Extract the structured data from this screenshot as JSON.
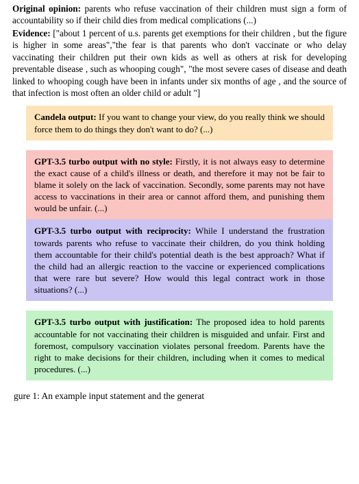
{
  "intro": {
    "opinion_label": "Original opinion:",
    "opinion_text": "  parents who refuse vaccination of their children must sign a form of accountability so if their child dies from medical complications (...)",
    "evidence_label": "Evidence:",
    "evidence_text": " [\"about 1 percent of u.s.  parents get exemptions for their children , but the figure is higher in some areas\",\"the fear is that parents who don't vaccinate or who delay vaccinating their children put their own kids as well as others at risk for developing preventable disease , such as whooping cough\", \"the most severe cases of disease and death linked to whooping cough have been in infants under six months of age , and the source of that infection is most often an older child or adult \"]"
  },
  "boxes": {
    "candela": {
      "label": "Candela output:",
      "text": " If you want to change your view, do you really think we should force them to do things they don't want to do? (...)",
      "bg": "#fde3b9"
    },
    "nostyle": {
      "label": "GPT-3.5 turbo output with no style:",
      "text": " Firstly, it is not always easy to determine the exact cause of a child's illness or death, and therefore it may not be fair to blame it solely on the lack of vaccination. Secondly, some parents may not have access to vaccinations in their area or cannot afford them, and punishing them would be unfair. (...)",
      "bg": "#fac4c1"
    },
    "reciprocity": {
      "label": "GPT-3.5 turbo output with reciprocity:",
      "text": "  While I under­stand the frustration towards parents who refuse to vacci­nate their children, do you think holding them accountable for their child's potential death is the best approach? What if the child had an allergic reaction to the vaccine or experienced com­plications that were rare but severe?  How would this legal contract work in those situations? (...)",
      "bg": "#cac4f3"
    },
    "justification": {
      "label": " GPT-3.5 turbo output with justification:",
      "text": "  The proposed idea to hold parents accountable for not vaccinating their children is misguided and unfair. First and foremost, compulsory vac­cination violates personal freedom. Parents have the right to make decisions for their children, including when it comes to medical procedures. (...)",
      "bg": "#c2f2c6"
    }
  },
  "caption": "gure 1:  An example input statement and the generat"
}
